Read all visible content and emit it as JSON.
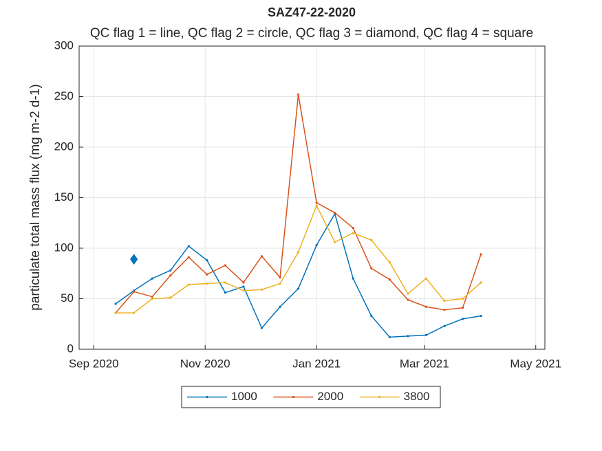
{
  "chart_data": {
    "type": "line",
    "title": "SAZ47-22-2020",
    "subtitle": "QC flag 1 = line, QC flag 2 = circle, QC flag 3 = diamond, QC flag 4 = square",
    "y_label": "particulate total mass flux (mg m-2 d-1)",
    "x": [
      "2020-09-13",
      "2020-09-23",
      "2020-10-03",
      "2020-10-13",
      "2020-10-23",
      "2020-11-02",
      "2020-11-12",
      "2020-11-22",
      "2020-12-02",
      "2020-12-12",
      "2020-12-22",
      "2021-01-01",
      "2021-01-11",
      "2021-01-21",
      "2021-01-31",
      "2021-02-10",
      "2021-02-20",
      "2021-03-02",
      "2021-03-12",
      "2021-03-22",
      "2021-04-01"
    ],
    "series": [
      {
        "name": "1000",
        "color": "#0072bd",
        "values": [
          45,
          58,
          70,
          78,
          102,
          88,
          56,
          62,
          21,
          42,
          60,
          103,
          134,
          70,
          33,
          12,
          13,
          14,
          23,
          30,
          33
        ]
      },
      {
        "name": "2000",
        "color": "#d95319",
        "values": [
          36,
          57,
          52,
          73,
          91,
          74,
          83,
          66,
          92,
          71,
          252,
          145,
          135,
          120,
          80,
          69,
          49,
          42,
          39,
          41,
          94
        ]
      },
      {
        "name": "3800",
        "color": "#edb120",
        "values": [
          36,
          36,
          50,
          51,
          64,
          65,
          66,
          58,
          59,
          65,
          96,
          142,
          106,
          115,
          108,
          86,
          55,
          70,
          48,
          50,
          66
        ]
      }
    ],
    "markers": [
      {
        "x": "2020-09-23",
        "value": 89,
        "shape": "diamond",
        "color": "#0072bd"
      }
    ],
    "xlim": [
      "2020-08-24",
      "2021-05-06"
    ],
    "xticks": [
      {
        "value": "2020-09-01",
        "label": "Sep 2020"
      },
      {
        "value": "2020-11-01",
        "label": "Nov 2020"
      },
      {
        "value": "2021-01-01",
        "label": "Jan 2021"
      },
      {
        "value": "2021-03-01",
        "label": "Mar 2021"
      },
      {
        "value": "2021-05-01",
        "label": "May 2021"
      }
    ],
    "ylim": [
      0,
      300
    ],
    "yticks": [
      0,
      50,
      100,
      150,
      200,
      250,
      300
    ],
    "grid": true,
    "legend": "south"
  }
}
